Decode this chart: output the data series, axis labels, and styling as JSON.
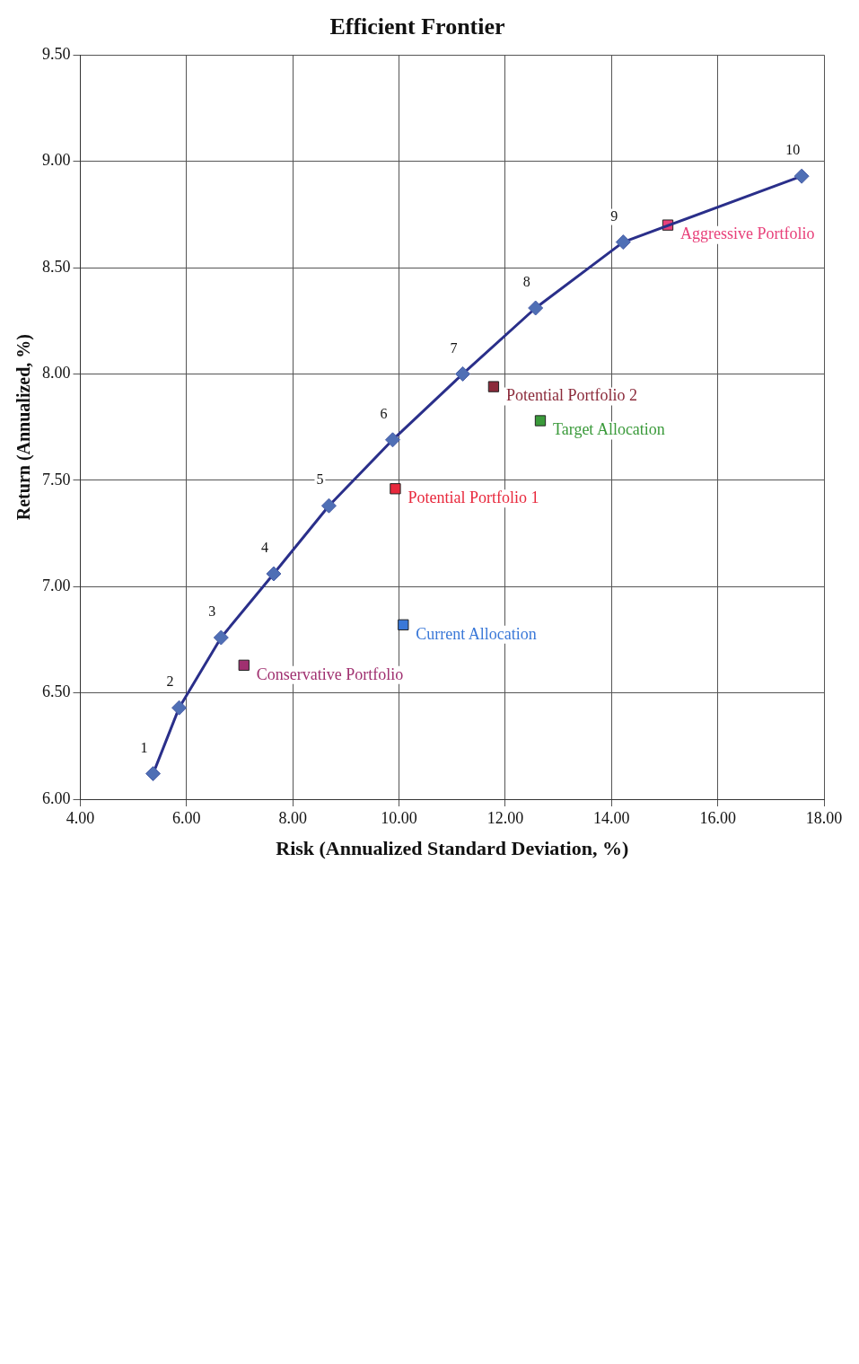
{
  "chart_data": {
    "type": "scatter",
    "title": "Efficient Frontier",
    "xlabel": "Risk (Annualized Standard Deviation, %)",
    "ylabel": "Return (Annualized, %)",
    "xlim": [
      4,
      18
    ],
    "xticks": [
      {
        "value": 4,
        "label": "4.00"
      },
      {
        "value": 6,
        "label": "6.00"
      },
      {
        "value": 8,
        "label": "8.00"
      },
      {
        "value": 10,
        "label": "10.00"
      },
      {
        "value": 12,
        "label": "12.00"
      },
      {
        "value": 14,
        "label": "14.00"
      },
      {
        "value": 16,
        "label": "16.00"
      },
      {
        "value": 18,
        "label": "18.00"
      }
    ],
    "ylim": [
      6,
      9.5
    ],
    "yticks": [
      {
        "value": 6,
        "label": "6.00"
      },
      {
        "value": 6.5,
        "label": "6.50"
      },
      {
        "value": 7,
        "label": "7.00"
      },
      {
        "value": 7.5,
        "label": "7.50"
      },
      {
        "value": 8,
        "label": "8.00"
      },
      {
        "value": 8.5,
        "label": "8.50"
      },
      {
        "value": 9,
        "label": "9.00"
      },
      {
        "value": 9.5,
        "label": "9.50"
      }
    ],
    "grid": true,
    "series": [
      {
        "type": "line",
        "color": "#2a2f8a",
        "marker": "diamond",
        "line_style": "solid",
        "x": [
          5.37,
          5.86,
          6.65,
          7.64,
          8.68,
          9.88,
          11.2,
          12.57,
          14.22,
          17.58
        ],
        "values": [
          6.12,
          6.43,
          6.76,
          7.06,
          7.38,
          7.69,
          8.0,
          8.31,
          8.62,
          8.93
        ]
      },
      {
        "type": "scatter",
        "name": "Aggressive Portfolio",
        "color": "#e8407a",
        "marker": "square",
        "x": [
          15.06
        ],
        "values": [
          8.7
        ]
      },
      {
        "type": "scatter",
        "name": "Potential Portfolio 2",
        "color": "#8b2a3a",
        "marker": "square",
        "x": [
          11.78
        ],
        "values": [
          7.94
        ]
      },
      {
        "type": "scatter",
        "name": "Target Allocation",
        "color": "#3a9a3a",
        "marker": "square",
        "x": [
          12.66
        ],
        "values": [
          7.78
        ]
      },
      {
        "type": "scatter",
        "name": "Potential Portfolio 1",
        "color": "#e8283c",
        "marker": "square",
        "x": [
          9.93
        ],
        "values": [
          7.46
        ]
      },
      {
        "type": "scatter",
        "name": "Current Allocation",
        "color": "#3a78d8",
        "marker": "square",
        "x": [
          10.08
        ],
        "values": [
          6.82
        ]
      },
      {
        "type": "scatter",
        "name": "Conservative Portfolio",
        "color": "#a03070",
        "marker": "square",
        "x": [
          7.08
        ],
        "values": [
          6.63
        ]
      }
    ],
    "annotations": [
      {
        "text": "1",
        "x": 5.37,
        "y": 6.12
      },
      {
        "text": "2",
        "x": 5.86,
        "y": 6.43
      },
      {
        "text": "3",
        "x": 6.65,
        "y": 6.76
      },
      {
        "text": "4",
        "x": 7.64,
        "y": 7.06
      },
      {
        "text": "5",
        "x": 8.68,
        "y": 7.38
      },
      {
        "text": "6",
        "x": 9.88,
        "y": 7.69
      },
      {
        "text": "7",
        "x": 11.2,
        "y": 8.0
      },
      {
        "text": "8",
        "x": 12.57,
        "y": 8.31
      },
      {
        "text": "9",
        "x": 14.22,
        "y": 8.62
      },
      {
        "text": "10",
        "x": 17.58,
        "y": 8.93
      }
    ]
  }
}
